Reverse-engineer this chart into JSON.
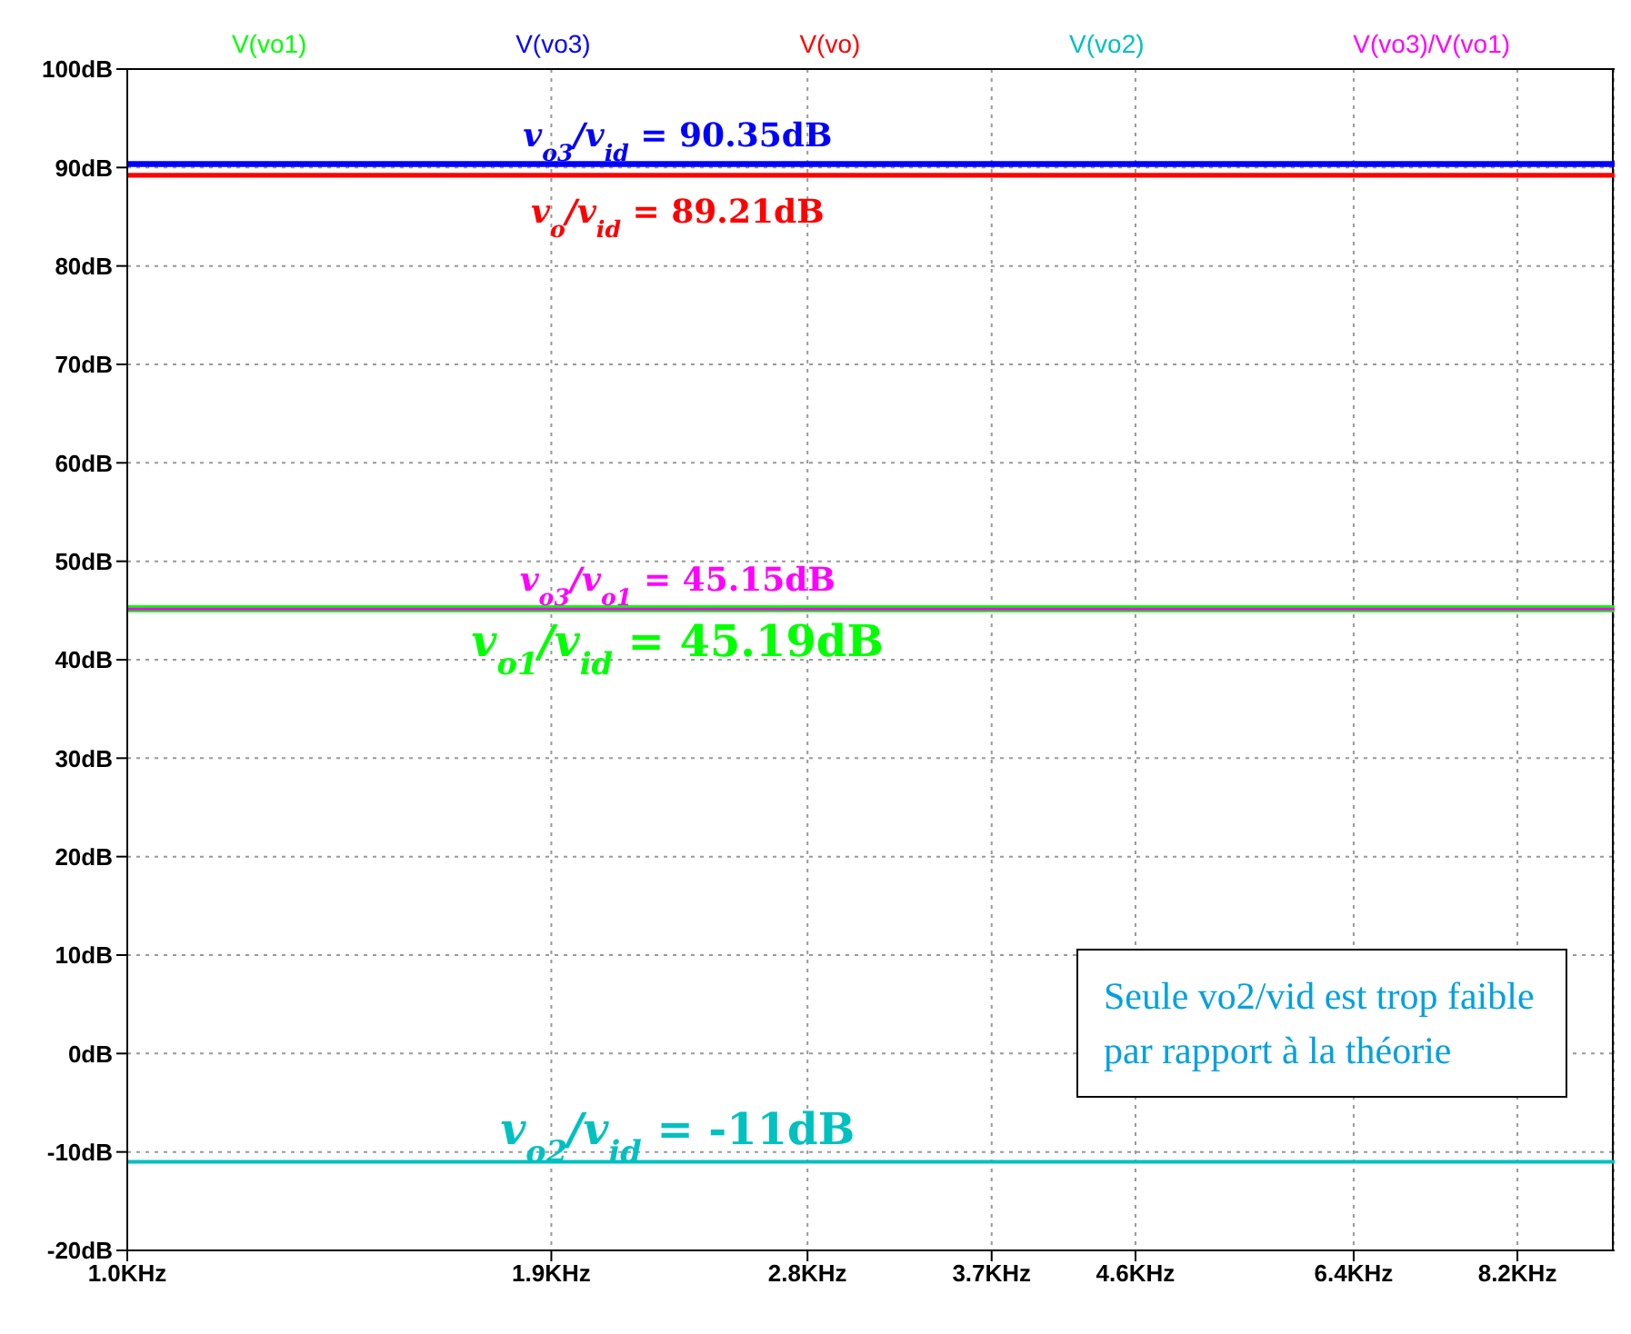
{
  "chart_data": {
    "type": "line",
    "x": [
      1,
      9.5
    ],
    "series": [
      {
        "name": "V(vo1)",
        "color": "#00ff00",
        "values": [
          45.19,
          45.19
        ]
      },
      {
        "name": "V(vo3)",
        "color": "#0000ff",
        "values": [
          90.35,
          90.35
        ]
      },
      {
        "name": "V(vo)",
        "color": "#ff0000",
        "values": [
          89.21,
          89.21
        ]
      },
      {
        "name": "V(vo2)",
        "color": "#00c0c0",
        "values": [
          -11,
          -11
        ]
      },
      {
        "name": "V(vo3)/V(vo1)",
        "color": "#ff00ff",
        "values": [
          45.15,
          45.15
        ]
      }
    ],
    "log": "x",
    "xlim": [
      1,
      9.5
    ],
    "xticks": [
      {
        "value": 1,
        "label": "1.0KHz"
      },
      {
        "value": 1.9,
        "label": "1.9KHz"
      },
      {
        "value": 2.8,
        "label": "2.8KHz"
      },
      {
        "value": 3.7,
        "label": "3.7KHz"
      },
      {
        "value": 4.6,
        "label": "4.6KHz"
      },
      {
        "value": 6.4,
        "label": "6.4KHz"
      },
      {
        "value": 8.2,
        "label": "8.2KHz"
      }
    ],
    "ylim": [
      -20,
      100
    ],
    "yticks": [
      {
        "value": -20,
        "label": "-20dB"
      },
      {
        "value": -10,
        "label": "-10dB"
      },
      {
        "value": 0,
        "label": "0dB"
      },
      {
        "value": 10,
        "label": "10dB"
      },
      {
        "value": 20,
        "label": "20dB"
      },
      {
        "value": 30,
        "label": "30dB"
      },
      {
        "value": 40,
        "label": "40dB"
      },
      {
        "value": 50,
        "label": "50dB"
      },
      {
        "value": 60,
        "label": "60dB"
      },
      {
        "value": 70,
        "label": "70dB"
      },
      {
        "value": 80,
        "label": "80dB"
      },
      {
        "value": 90,
        "label": "90dB"
      },
      {
        "value": 100,
        "label": "100dB"
      }
    ],
    "grid": true,
    "legend": "top",
    "marker": "none",
    "line_style": "solid",
    "annotations": [
      {
        "text": "v$_{o3}$/v$_{id}$ = 90.35dB",
        "y": 90.35
      },
      {
        "text": "v$_{o}$/v$_{id}$ = 89.21dB",
        "y": 89.21
      },
      {
        "text": "v$_{o3}$/v$_{o1}$ = 45.15dB",
        "y": 45.15
      },
      {
        "text": "v$_{o1}$/v$_{id}$ = 45.19dB",
        "y": 45.19
      },
      {
        "text": "v$_{o2}$/v$_{id}$ = -11dB",
        "y": -11
      },
      "Seule vo2/vid est trop faible par rapport à la théorie"
    ]
  }
}
